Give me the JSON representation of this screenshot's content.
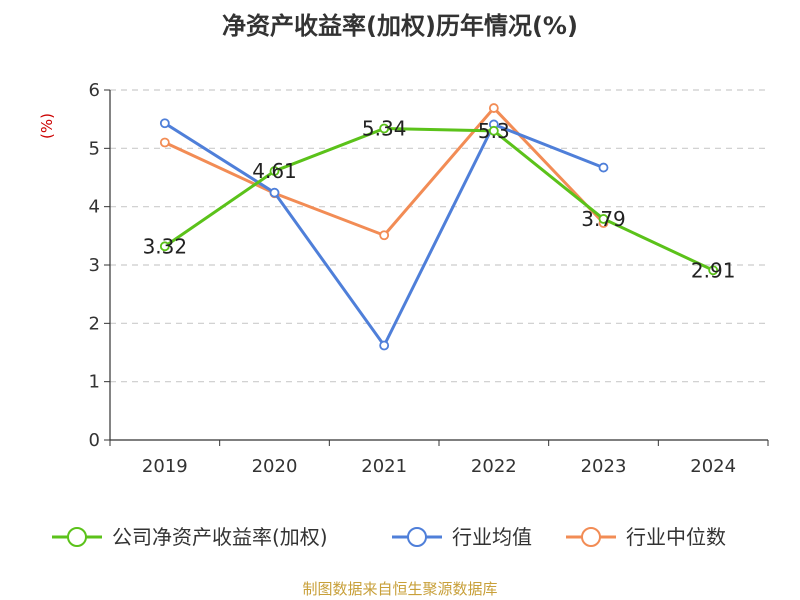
{
  "chart_data": {
    "type": "line",
    "title": "净资产收益率(加权)历年情况(%)",
    "ylabel": "(%)",
    "categories": [
      "2019",
      "2020",
      "2021",
      "2022",
      "2023",
      "2024"
    ],
    "yticks": [
      "0",
      "1",
      "2",
      "3",
      "4",
      "5",
      "6"
    ],
    "ylim": [
      0,
      6
    ],
    "grid": true,
    "legend_position": "bottom",
    "series": [
      {
        "name": "公司净资产收益率(加权)",
        "color": "#5bc21a",
        "values": [
          3.32,
          4.61,
          5.34,
          5.3,
          3.79,
          2.91
        ],
        "labels": [
          "3.32",
          "4.61",
          "5.34",
          "5.3",
          "3.79",
          "2.91"
        ]
      },
      {
        "name": "行业均值",
        "color": "#4f7fd9",
        "values": [
          5.43,
          4.24,
          1.62,
          5.41,
          4.67,
          null
        ]
      },
      {
        "name": "行业中位数",
        "color": "#f28c55",
        "values": [
          5.1,
          4.23,
          3.51,
          5.69,
          3.72,
          null
        ]
      }
    ],
    "source": "制图数据来自恒生聚源数据库"
  }
}
